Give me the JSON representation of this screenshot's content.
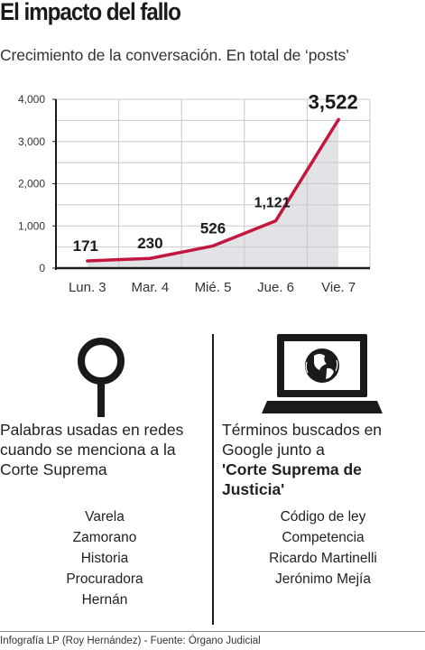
{
  "title": "El impacto del fallo",
  "subtitle": "Crecimiento de la conversación. En total de ‘posts’",
  "chart_data": {
    "type": "area",
    "categories": [
      "Lun. 3",
      "Mar. 4",
      "Mié. 5",
      "Jue. 6",
      "Vie. 7"
    ],
    "values": [
      171,
      230,
      526,
      1121,
      3522
    ],
    "value_labels": [
      "171",
      "230",
      "526",
      "1,121",
      "3,522"
    ],
    "y_ticks": [
      "0",
      "1,000",
      "2,000",
      "3,000",
      "4,000"
    ],
    "ylim": [
      0,
      4000
    ],
    "grid": true,
    "line_color": "#c2183f",
    "fill_color": "#e2e3e6"
  },
  "left_panel": {
    "icon": "magnifier-icon",
    "heading": "Palabras usadas en redes cuando se menciona a la Corte Suprema",
    "words": [
      "Varela",
      "Zamorano",
      "Historia",
      "Procuradora",
      "Hernán"
    ]
  },
  "right_panel": {
    "icon": "computer-globe-icon",
    "heading_plain": "Términos buscados en Google junto a",
    "heading_bold": "'Corte Suprema de Justicia'",
    "terms": [
      "Código de ley",
      "Competencia",
      "Ricardo Martinelli",
      "Jerónimo Mejía"
    ]
  },
  "credit": "Infografía LP (Roy Hernández) - Fuente: Órgano Judicial",
  "colors": {
    "text": "#1a1a1a",
    "accent": "#c2183f",
    "area": "#e2e3e6",
    "grid": "#c8c8c8"
  }
}
